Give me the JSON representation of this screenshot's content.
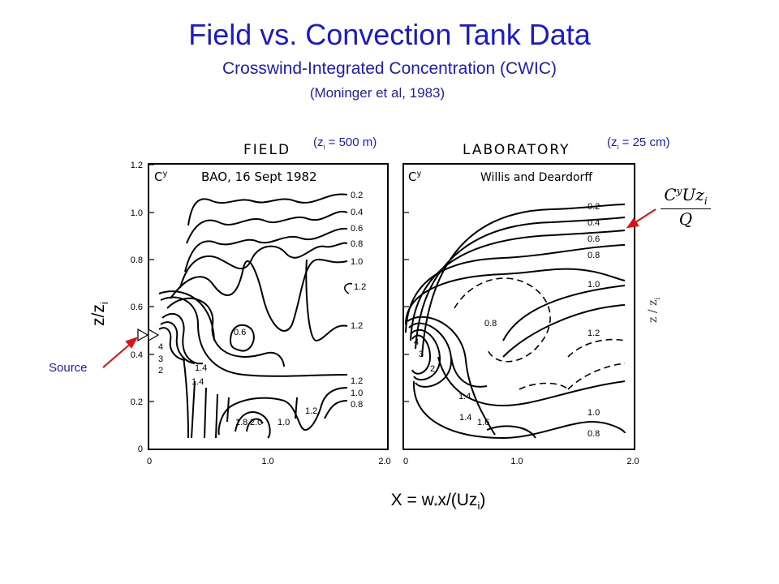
{
  "header": {
    "title": "Field vs. Convection Tank Data",
    "subtitle": "Crosswind-Integrated Concentration (CWIC)",
    "reference": "(Moninger et al, 1983)"
  },
  "field_panel": {
    "heading": "FIELD",
    "zi_note": "(z",
    "zi_sub": "i",
    "zi_val": " = 500 m)",
    "variable": "C",
    "variable_sup": "y",
    "dataset": "BAO, 16 Sept 1982",
    "contour_labels": [
      "0.2",
      "0.4",
      "0.6",
      "0.8",
      "1.0",
      "1.2",
      "0.6",
      "1.2",
      "4",
      "3",
      "2",
      "1.4",
      "1.4",
      "1.2",
      "1.0",
      "0.8",
      "1.8",
      "2.0",
      "1.0",
      "1.2"
    ]
  },
  "lab_panel": {
    "heading": "LABORATORY",
    "zi_note": "(z",
    "zi_sub": "i",
    "zi_val": " = 25 cm)",
    "variable": "C",
    "variable_sup": "y",
    "dataset": "Willis and Deardorff",
    "contour_labels": [
      "0.2",
      "0.4",
      "0.6",
      "0.8",
      "1.0",
      "0.8",
      "1.2",
      "4",
      "3",
      "2",
      "1.4",
      "1.4",
      "1.6",
      "1.0",
      "0.8"
    ]
  },
  "axes": {
    "y_ticks": [
      "1.2",
      "1.0",
      "0.8",
      "0.6",
      "0.4",
      "0.2",
      "0"
    ],
    "x_ticks": [
      "0",
      "1.0",
      "2.0",
      "0",
      "1.0",
      "2.0"
    ],
    "ylabel_main": "z/z",
    "ylabel_sub": "i",
    "xlabel_pre": "X = w",
    "xlabel_star": "*",
    "xlabel_mid": "x/(Uz",
    "xlabel_sub": "i",
    "xlabel_end": ")",
    "right_label": "z / z",
    "right_label_sub": "i"
  },
  "annotations": {
    "source": "Source",
    "formula_num": "C",
    "formula_num_sup": "y",
    "formula_num_rest": "Uz",
    "formula_num_sub": "i",
    "formula_den": "Q"
  },
  "colors": {
    "title": "#1a1acc",
    "arrow": "#e01010",
    "ink": "#000000"
  }
}
